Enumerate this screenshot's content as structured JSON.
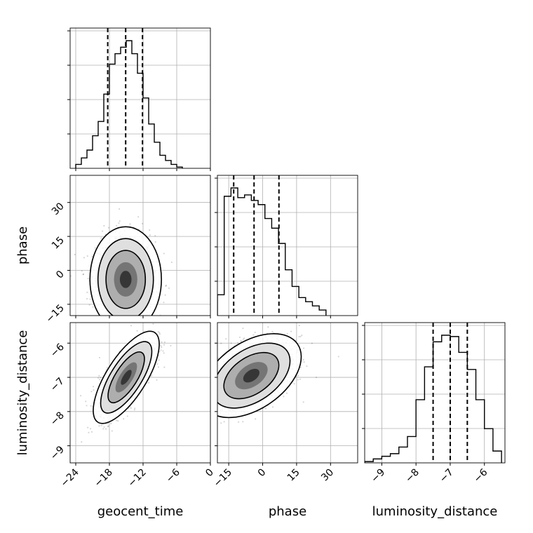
{
  "chart_data": {
    "type": "corner",
    "parameters": [
      "geocent_time",
      "phase",
      "luminosity_distance"
    ],
    "axis_labels": {
      "geocent_time": "geocent_time",
      "phase": "phase",
      "luminosity_distance": "luminosity_distance"
    },
    "ranges": {
      "geocent_time": [
        -25,
        0
      ],
      "phase": [
        -20,
        42
      ],
      "luminosity_distance": [
        -9.5,
        -5.4
      ]
    },
    "ticks": {
      "geocent_time": [
        "-24",
        "-18",
        "-12",
        "-6",
        "0"
      ],
      "phase": [
        "-15",
        "0",
        "15",
        "30"
      ],
      "luminosity_distance": [
        "-9",
        "-8",
        "-7",
        "-6"
      ]
    },
    "grid": true,
    "quantiles": {
      "geocent_time": [
        -18.3,
        -15.1,
        -12.1
      ],
      "phase": [
        -12.8,
        -3.8,
        7.2
      ],
      "luminosity_distance": [
        -7.5,
        -7.0,
        -6.5
      ]
    },
    "histograms": {
      "geocent_time": {
        "bin_edges": [
          -24,
          -23,
          -22,
          -21,
          -20,
          -19,
          -18,
          -17,
          -16,
          -15,
          -14,
          -13,
          -12,
          -11,
          -10,
          -9,
          -8,
          -7,
          -6,
          -5
        ],
        "counts": [
          3,
          8,
          14,
          25,
          36,
          57,
          80,
          88,
          93,
          98,
          88,
          73,
          54,
          34,
          20,
          10,
          6,
          3,
          1
        ]
      },
      "phase": {
        "bin_edges": [
          -20,
          -17,
          -14,
          -11,
          -8,
          -5,
          -2,
          1,
          4,
          7,
          10,
          13,
          16,
          19,
          22,
          25,
          28
        ],
        "counts": [
          15,
          86,
          92,
          85,
          87,
          83,
          80,
          70,
          63,
          52,
          33,
          21,
          13,
          10,
          7,
          4
        ]
      },
      "luminosity_distance": {
        "bin_edges": [
          -9.5,
          -9.25,
          -9.0,
          -8.75,
          -8.5,
          -8.25,
          -8.0,
          -7.75,
          -7.5,
          -7.25,
          -7.0,
          -6.75,
          -6.5,
          -6.25,
          -6.0,
          -5.75,
          -5.5
        ],
        "counts": [
          1,
          3,
          5,
          7,
          12,
          20,
          48,
          73,
          92,
          97,
          96,
          84,
          71,
          48,
          26,
          9
        ]
      }
    },
    "joint": [
      {
        "x": "geocent_time",
        "y": "phase",
        "mean": [
          -15.1,
          -4.0
        ],
        "std": [
          2.6,
          9.5
        ],
        "corr": 0.0
      },
      {
        "x": "geocent_time",
        "y": "luminosity_distance",
        "mean": [
          -15.0,
          -7.0
        ],
        "std": [
          2.4,
          0.55
        ],
        "corr": 0.72
      },
      {
        "x": "phase",
        "y": "luminosity_distance",
        "mean": [
          -5.0,
          -6.95
        ],
        "std": [
          9.0,
          0.5
        ],
        "corr": 0.45
      }
    ]
  }
}
